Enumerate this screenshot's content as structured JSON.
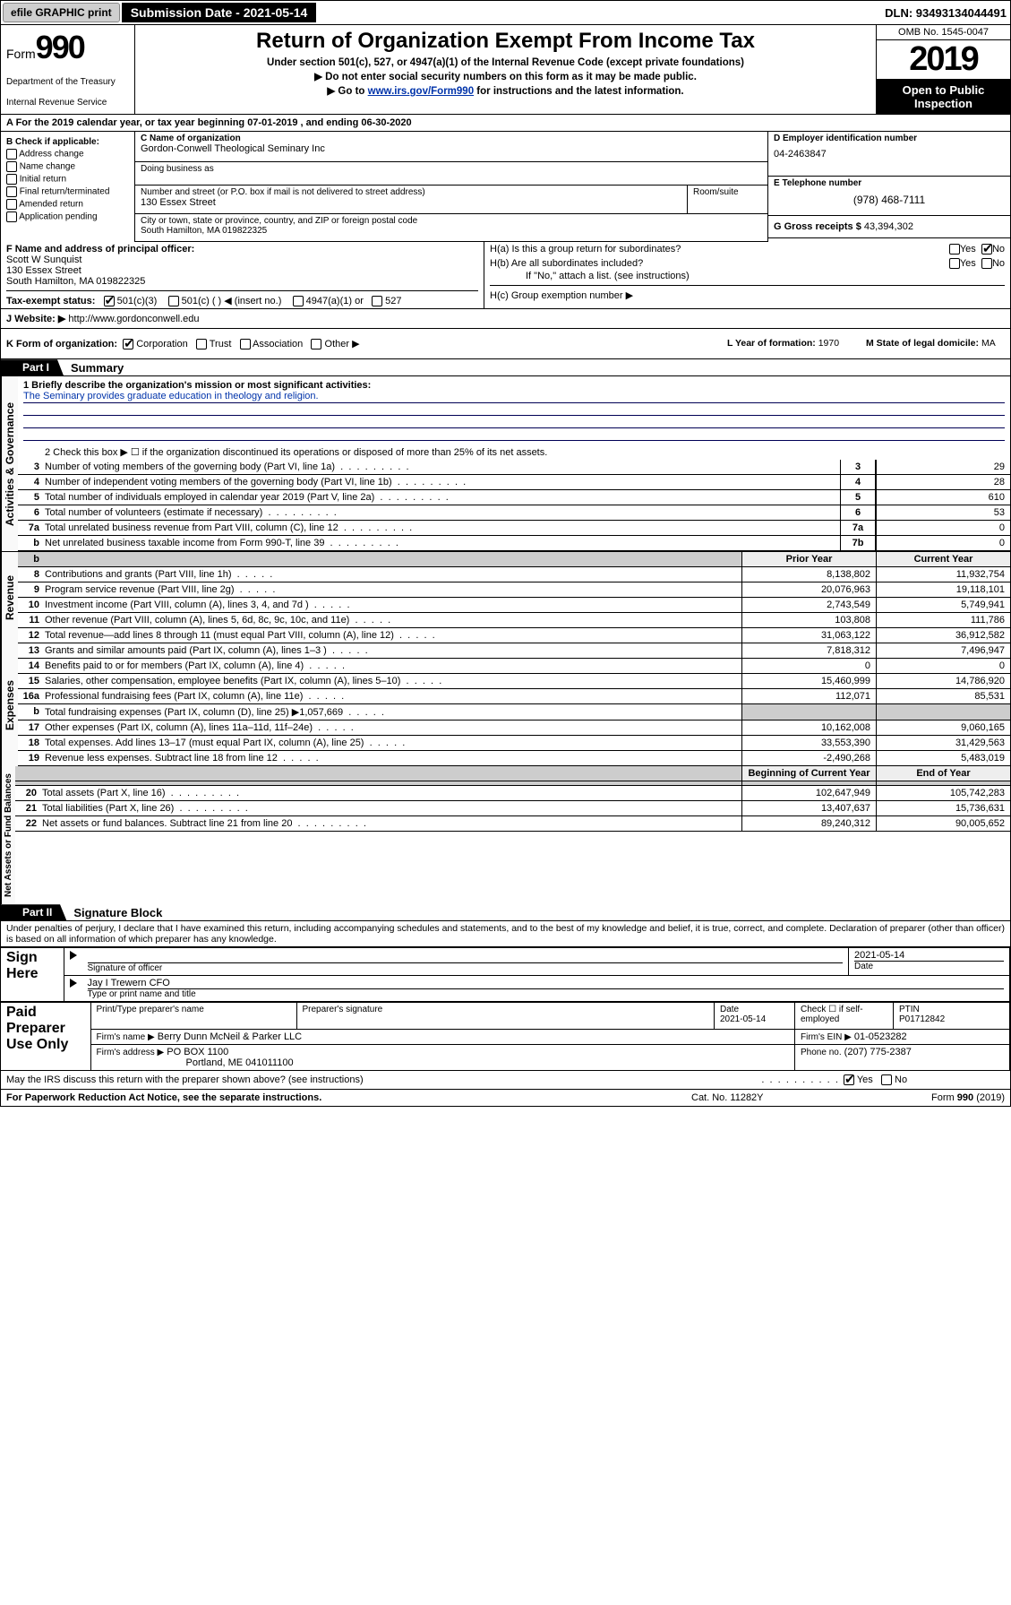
{
  "topbar": {
    "efile_label": "efile GRAPHIC print",
    "submission_date_label": "Submission Date - 2021-05-14",
    "dln_label": "DLN: 93493134044491"
  },
  "header": {
    "form_word": "Form",
    "form_num": "990",
    "dept": "Department of the Treasury",
    "irs": "Internal Revenue Service",
    "title": "Return of Organization Exempt From Income Tax",
    "sub1": "Under section 501(c), 527, or 4947(a)(1) of the Internal Revenue Code (except private foundations)",
    "sub2": "▶ Do not enter social security numbers on this form as it may be made public.",
    "sub3_pre": "▶ Go to ",
    "sub3_link": "www.irs.gov/Form990",
    "sub3_post": " for instructions and the latest information.",
    "omb": "OMB No. 1545-0047",
    "year": "2019",
    "open1": "Open to Public",
    "open2": "Inspection"
  },
  "line_a": "A For the 2019 calendar year, or tax year beginning 07-01-2019     , and ending 06-30-2020",
  "col_b": {
    "header": "B Check if applicable:",
    "items": [
      "Address change",
      "Name change",
      "Initial return",
      "Final return/terminated",
      "Amended return",
      "Application pending"
    ]
  },
  "name_box": {
    "label_c": "C Name of organization",
    "org_name": "Gordon-Conwell Theological Seminary Inc",
    "dba_label": "Doing business as",
    "street_label": "Number and street (or P.O. box if mail is not delivered to street address)",
    "street": "130 Essex Street",
    "room_label": "Room/suite",
    "city_label": "City or town, state or province, country, and ZIP or foreign postal code",
    "city": "South Hamilton, MA  019822325"
  },
  "right_col": {
    "ein_label": "D Employer identification number",
    "ein": "04-2463847",
    "tel_label": "E Telephone number",
    "tel": "(978) 468-7111",
    "gross_label": "G Gross receipts $",
    "gross": "43,394,302"
  },
  "f_box": {
    "label": "F Name and address of principal officer:",
    "name": "Scott W Sunquist",
    "addr1": "130 Essex Street",
    "addr2": "South Hamilton, MA  019822325"
  },
  "h_box": {
    "ha": "H(a)  Is this a group return for subordinates?",
    "hb": "H(b)  Are all subordinates included?",
    "hb_note": "If \"No,\" attach a list. (see instructions)",
    "hc": "H(c)  Group exemption number ▶",
    "yes": "Yes",
    "no": "No"
  },
  "tax_status": {
    "label_i": "Tax-exempt status:",
    "c3": "501(c)(3)",
    "cblank": "501(c) (   ) ◀ (insert no.)",
    "a1": "4947(a)(1) or",
    "five27": "527"
  },
  "website": {
    "label": "J  Website: ▶",
    "url": "http://www.gordonconwell.edu"
  },
  "k_row": {
    "label": "K Form of organization:",
    "opts": [
      "Corporation",
      "Trust",
      "Association",
      "Other ▶"
    ],
    "year_label": "L Year of formation:",
    "year": "1970",
    "state_label": "M State of legal domicile:",
    "state": "MA"
  },
  "part1": {
    "title": "Part I",
    "subtitle": "Summary",
    "line1_label": "1  Briefly describe the organization's mission or most significant activities:",
    "mission": "The Seminary provides graduate education in theology and religion.",
    "line2": "2  Check this box ▶ ☐  if the organization discontinued its operations or disposed of more than 25% of its net assets.",
    "rows": [
      {
        "n": "3",
        "t": "Number of voting members of the governing body (Part VI, line 1a)",
        "b": "3",
        "v": "29"
      },
      {
        "n": "4",
        "t": "Number of independent voting members of the governing body (Part VI, line 1b)",
        "b": "4",
        "v": "28"
      },
      {
        "n": "5",
        "t": "Total number of individuals employed in calendar year 2019 (Part V, line 2a)",
        "b": "5",
        "v": "610"
      },
      {
        "n": "6",
        "t": "Total number of volunteers (estimate if necessary)",
        "b": "6",
        "v": "53"
      },
      {
        "n": "7a",
        "t": "Total unrelated business revenue from Part VIII, column (C), line 12",
        "b": "7a",
        "v": "0"
      },
      {
        "n": " b",
        "t": "Net unrelated business taxable income from Form 990-T, line 39",
        "b": "7b",
        "v": "0"
      }
    ]
  },
  "revenue": {
    "side": "Revenue",
    "prior_label": "Prior Year",
    "current_label": "Current Year",
    "rows": [
      {
        "n": "8",
        "t": "Contributions and grants (Part VIII, line 1h)",
        "p": "8,138,802",
        "c": "11,932,754"
      },
      {
        "n": "9",
        "t": "Program service revenue (Part VIII, line 2g)",
        "p": "20,076,963",
        "c": "19,118,101"
      },
      {
        "n": "10",
        "t": "Investment income (Part VIII, column (A), lines 3, 4, and 7d )",
        "p": "2,743,549",
        "c": "5,749,941"
      },
      {
        "n": "11",
        "t": "Other revenue (Part VIII, column (A), lines 5, 6d, 8c, 9c, 10c, and 11e)",
        "p": "103,808",
        "c": "111,786"
      },
      {
        "n": "12",
        "t": "Total revenue—add lines 8 through 11 (must equal Part VIII, column (A), line 12)",
        "p": "31,063,122",
        "c": "36,912,582"
      }
    ]
  },
  "expenses": {
    "side": "Expenses",
    "rows": [
      {
        "n": "13",
        "t": "Grants and similar amounts paid (Part IX, column (A), lines 1–3 )",
        "p": "7,818,312",
        "c": "7,496,947"
      },
      {
        "n": "14",
        "t": "Benefits paid to or for members (Part IX, column (A), line 4)",
        "p": "0",
        "c": "0"
      },
      {
        "n": "15",
        "t": "Salaries, other compensation, employee benefits (Part IX, column (A), lines 5–10)",
        "p": "15,460,999",
        "c": "14,786,920"
      },
      {
        "n": "16a",
        "t": "Professional fundraising fees (Part IX, column (A), line 11e)",
        "p": "112,071",
        "c": "85,531"
      },
      {
        "n": " b",
        "t": "Total fundraising expenses (Part IX, column (D), line 25) ▶1,057,669",
        "p": "",
        "c": "",
        "grey": true
      },
      {
        "n": "17",
        "t": "Other expenses (Part IX, column (A), lines 11a–11d, 11f–24e)",
        "p": "10,162,008",
        "c": "9,060,165"
      },
      {
        "n": "18",
        "t": "Total expenses. Add lines 13–17 (must equal Part IX, column (A), line 25)",
        "p": "33,553,390",
        "c": "31,429,563"
      },
      {
        "n": "19",
        "t": "Revenue less expenses. Subtract line 18 from line 12",
        "p": "-2,490,268",
        "c": "5,483,019"
      }
    ]
  },
  "netassets": {
    "side": "Net Assets or Fund Balances",
    "begin_label": "Beginning of Current Year",
    "end_label": "End of Year",
    "rows": [
      {
        "n": "20",
        "t": "Total assets (Part X, line 16)",
        "p": "102,647,949",
        "c": "105,742,283"
      },
      {
        "n": "21",
        "t": "Total liabilities (Part X, line 26)",
        "p": "13,407,637",
        "c": "15,736,631"
      },
      {
        "n": "22",
        "t": "Net assets or fund balances. Subtract line 21 from line 20",
        "p": "89,240,312",
        "c": "90,005,652"
      }
    ]
  },
  "part2": {
    "title": "Part II",
    "subtitle": "Signature Block",
    "perjury": "Under penalties of perjury, I declare that I have examined this return, including accompanying schedules and statements, and to the best of my knowledge and belief, it is true, correct, and complete. Declaration of preparer (other than officer) is based on all information of which preparer has any knowledge."
  },
  "sign": {
    "side": "Sign Here",
    "sig_of_officer": "Signature of officer",
    "date": "2021-05-14",
    "date_label": "Date",
    "officer_name": "Jay I Trewern  CFO",
    "type_name": "Type or print name and title"
  },
  "preparer": {
    "side": "Paid Preparer Use Only",
    "print_name": "Print/Type preparer's name",
    "sig": "Preparer's signature",
    "date_label": "Date",
    "date": "2021-05-14",
    "check_label": "Check ☐ if self-employed",
    "ptin_label": "PTIN",
    "ptin": "P01712842",
    "firm_name_label": "Firm's name    ▶",
    "firm_name": "Berry Dunn McNeil & Parker LLC",
    "firm_ein_label": "Firm's EIN ▶",
    "firm_ein": "01-0523282",
    "firm_addr_label": "Firm's address ▶",
    "firm_addr1": "PO BOX 1100",
    "firm_addr2": "Portland, ME  041011100",
    "phone_label": "Phone no.",
    "phone": "(207) 775-2387"
  },
  "discuss": {
    "text": "May the IRS discuss this return with the preparer shown above? (see instructions)",
    "yes": "Yes",
    "no": "No"
  },
  "footer": {
    "left": "For Paperwork Reduction Act Notice, see the separate instructions.",
    "mid": "Cat. No. 11282Y",
    "right": "Form 990 (2019)"
  }
}
